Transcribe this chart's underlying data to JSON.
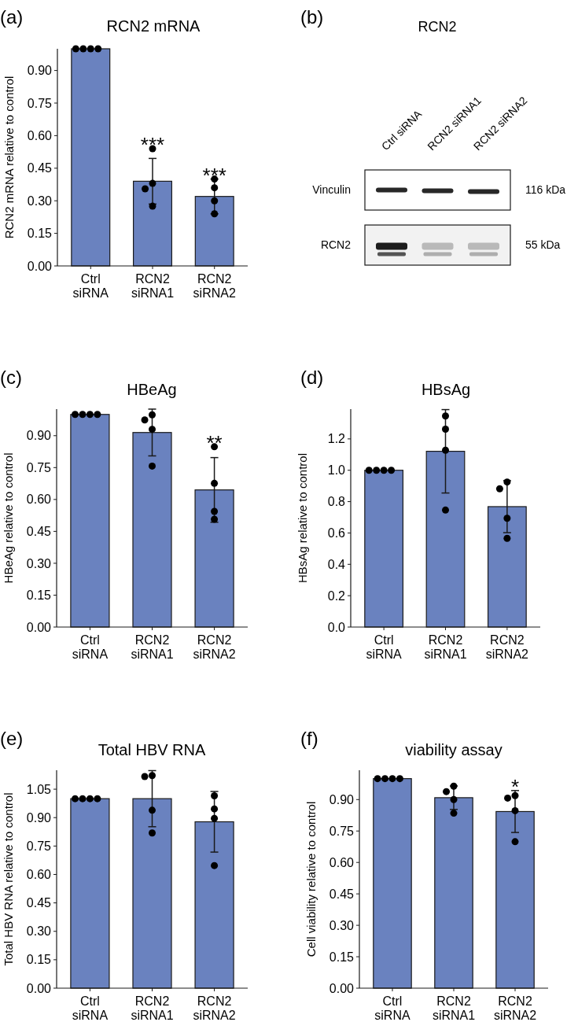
{
  "chart_data": [
    {
      "type": "bar",
      "title": "RCN2 mRNA",
      "ylabel": "RCN2 mRNA relative to control",
      "categories": [
        "Ctrl siRNA",
        "RCN2 siRNA1",
        "RCN2 siRNA2"
      ],
      "ylim": [
        0,
        1.0
      ],
      "yticks": [
        {
          "value": 0,
          "label": "0.00"
        },
        0.15,
        {
          "value": 0.3,
          "label": "0.30"
        },
        0.45,
        {
          "value": 0.6,
          "label": "0.60"
        },
        0.75,
        {
          "value": 0.9,
          "label": "0.90"
        }
      ],
      "series": [
        {
          "type": "bar",
          "color": "#6a82bf",
          "values": [
            1.0,
            0.39,
            0.32
          ],
          "errors": [
            null,
            0.105,
            0.08
          ]
        },
        {
          "type": "scatter",
          "color": "#000000",
          "x": [
            "Ctrl siRNA",
            "Ctrl siRNA",
            "Ctrl siRNA",
            "Ctrl siRNA",
            "RCN2 siRNA1",
            "RCN2 siRNA1",
            "RCN2 siRNA1",
            "RCN2 siRNA1",
            "RCN2 siRNA2",
            "RCN2 siRNA2",
            "RCN2 siRNA2",
            "RCN2 siRNA2"
          ],
          "values": [
            1.0,
            1.0,
            1.0,
            1.0,
            0.54,
            0.38,
            0.355,
            0.275,
            0.4,
            0.36,
            0.3,
            0.24
          ]
        }
      ],
      "annotations": [
        "(a)",
        {
          "text": "***",
          "x": "RCN2 siRNA1",
          "y": 0.54
        },
        {
          "text": "***",
          "x": "RCN2 siRNA2",
          "y": 0.4
        }
      ]
    },
    {
      "type": "other",
      "title": "RCN2",
      "categories": [
        "Ctrl siRNA",
        "RCN2 siRNA1",
        "RCN2 siRNA2"
      ],
      "y_categories": [
        "Vinculin",
        "RCN2"
      ],
      "y2_categories": [
        "116 kDa",
        "55 kDa"
      ],
      "annotations": [
        "(b)"
      ]
    },
    {
      "type": "bar",
      "title": "HBeAg",
      "ylabel": "HBeAg relative to control",
      "categories": [
        "Ctrl siRNA",
        "RCN2 siRNA1",
        "RCN2 siRNA2"
      ],
      "ylim": [
        0,
        1.025
      ],
      "yticks": [
        {
          "value": 0,
          "label": "0.00"
        },
        0.15,
        {
          "value": 0.3,
          "label": "0.30"
        },
        0.45,
        {
          "value": 0.6,
          "label": "0.60"
        },
        0.75,
        {
          "value": 0.9,
          "label": "0.90"
        }
      ],
      "series": [
        {
          "type": "bar",
          "color": "#6a82bf",
          "values": [
            1.0,
            0.915,
            0.645
          ],
          "errors": [
            null,
            0.11,
            0.152
          ]
        },
        {
          "type": "scatter",
          "color": "#000000",
          "x": [
            "Ctrl siRNA",
            "Ctrl siRNA",
            "Ctrl siRNA",
            "Ctrl siRNA",
            "RCN2 siRNA1",
            "RCN2 siRNA1",
            "RCN2 siRNA1",
            "RCN2 siRNA1",
            "RCN2 siRNA2",
            "RCN2 siRNA2",
            "RCN2 siRNA2",
            "RCN2 siRNA2"
          ],
          "values": [
            1.0,
            1.0,
            1.0,
            1.0,
            0.998,
            0.974,
            0.93,
            0.757,
            0.848,
            0.676,
            0.544,
            0.507
          ]
        }
      ],
      "annotations": [
        "(c)",
        {
          "text": "**",
          "x": "RCN2 siRNA2",
          "y": 0.848
        }
      ]
    },
    {
      "type": "bar",
      "title": "HBsAg",
      "ylabel": "HBsAg relative to control",
      "categories": [
        "Ctrl siRNA",
        "RCN2 siRNA1",
        "RCN2 siRNA2"
      ],
      "ylim": [
        0,
        1.39
      ],
      "yticks": [
        {
          "value": 0,
          "label": "0.0"
        },
        0.2,
        0.4,
        0.6,
        0.8,
        {
          "value": 1,
          "label": "1.0"
        },
        1.2
      ],
      "series": [
        {
          "type": "bar",
          "color": "#6a82bf",
          "values": [
            1.0,
            1.121,
            0.768
          ],
          "errors": [
            null,
            0.266,
            0.166
          ]
        },
        {
          "type": "scatter",
          "color": "#000000",
          "x": [
            "Ctrl siRNA",
            "Ctrl siRNA",
            "Ctrl siRNA",
            "Ctrl siRNA",
            "RCN2 siRNA1",
            "RCN2 siRNA1",
            "RCN2 siRNA1",
            "RCN2 siRNA1",
            "RCN2 siRNA2",
            "RCN2 siRNA2",
            "RCN2 siRNA2",
            "RCN2 siRNA2"
          ],
          "values": [
            1.0,
            1.0,
            1.0,
            1.0,
            1.346,
            1.262,
            1.128,
            0.746,
            0.925,
            0.882,
            0.694,
            0.566
          ]
        }
      ],
      "annotations": [
        "(d)"
      ]
    },
    {
      "type": "bar",
      "title": "Total HBV RNA",
      "ylabel": "Total HBV RNA relative to control",
      "categories": [
        "Ctrl siRNA",
        "RCN2 siRNA1",
        "RCN2 siRNA2"
      ],
      "ylim": [
        0,
        1.15
      ],
      "yticks": [
        {
          "value": 0,
          "label": "0.00"
        },
        0.15,
        {
          "value": 0.3,
          "label": "0.30"
        },
        0.45,
        {
          "value": 0.6,
          "label": "0.60"
        },
        0.75,
        {
          "value": 0.9,
          "label": "0.90"
        },
        1.05
      ],
      "series": [
        {
          "type": "bar",
          "color": "#6a82bf",
          "values": [
            1.0,
            1.0,
            0.878
          ],
          "errors": [
            null,
            0.148,
            0.16
          ]
        },
        {
          "type": "scatter",
          "color": "#000000",
          "x": [
            "Ctrl siRNA",
            "Ctrl siRNA",
            "Ctrl siRNA",
            "Ctrl siRNA",
            "RCN2 siRNA1",
            "RCN2 siRNA1",
            "RCN2 siRNA1",
            "RCN2 siRNA1",
            "RCN2 siRNA2",
            "RCN2 siRNA2",
            "RCN2 siRNA2",
            "RCN2 siRNA2"
          ],
          "values": [
            1.0,
            1.0,
            1.0,
            1.0,
            1.122,
            1.117,
            0.939,
            0.819,
            1.015,
            0.946,
            0.896,
            0.647
          ]
        }
      ],
      "annotations": [
        "(e)"
      ]
    },
    {
      "type": "bar",
      "title": "viability assay",
      "ylabel": "Cell viability relative to control",
      "categories": [
        "Ctrl siRNA",
        "RCN2 siRNA1",
        "RCN2 siRNA2"
      ],
      "ylim": [
        0,
        1.04
      ],
      "yticks": [
        {
          "value": 0,
          "label": "0.00"
        },
        0.15,
        {
          "value": 0.3,
          "label": "0.30"
        },
        0.45,
        {
          "value": 0.6,
          "label": "0.60"
        },
        0.75,
        {
          "value": 0.9,
          "label": "0.90"
        }
      ],
      "series": [
        {
          "type": "bar",
          "color": "#6a82bf",
          "values": [
            1.0,
            0.909,
            0.843
          ],
          "errors": [
            null,
            0.056,
            0.1
          ]
        },
        {
          "type": "scatter",
          "color": "#000000",
          "x": [
            "Ctrl siRNA",
            "Ctrl siRNA",
            "Ctrl siRNA",
            "Ctrl siRNA",
            "RCN2 siRNA1",
            "RCN2 siRNA1",
            "RCN2 siRNA1",
            "RCN2 siRNA1",
            "RCN2 siRNA2",
            "RCN2 siRNA2",
            "RCN2 siRNA2",
            "RCN2 siRNA2"
          ],
          "values": [
            1.0,
            1.0,
            1.0,
            1.0,
            0.964,
            0.938,
            0.9,
            0.835,
            0.919,
            0.907,
            0.847,
            0.699
          ]
        }
      ],
      "annotations": [
        "(f)",
        {
          "text": "*",
          "x": "RCN2 siRNA2",
          "y": 0.943
        }
      ]
    }
  ]
}
